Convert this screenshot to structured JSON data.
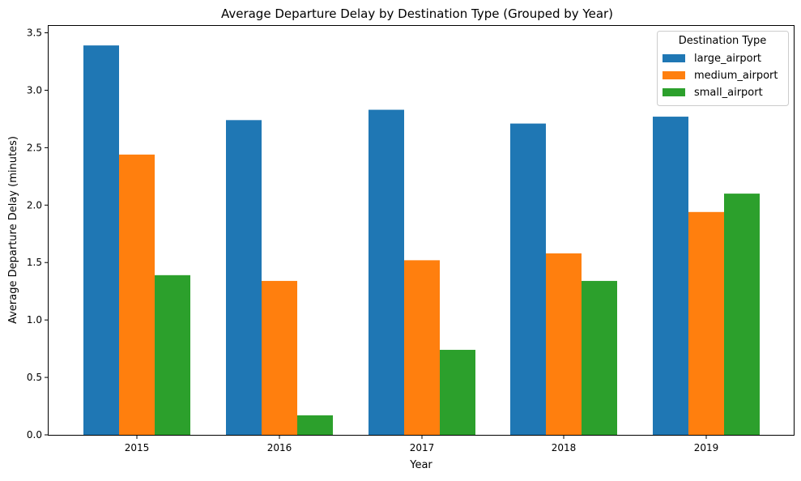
{
  "chart_data": {
    "type": "bar",
    "title": "Average Departure Delay by Destination Type (Grouped by Year)",
    "xlabel": "Year",
    "ylabel": "Average Departure Delay (minutes)",
    "categories": [
      "2015",
      "2016",
      "2017",
      "2018",
      "2019"
    ],
    "ylim": [
      0,
      3.56
    ],
    "yticks": [
      "0.0",
      "0.5",
      "1.0",
      "1.5",
      "2.0",
      "2.5",
      "3.0",
      "3.5"
    ],
    "grid": false,
    "legend": {
      "title": "Destination Type",
      "placement": "top-right"
    },
    "series": [
      {
        "name": "large_airport",
        "color": "#1f77b4",
        "values": [
          3.39,
          2.74,
          2.83,
          2.71,
          2.77
        ]
      },
      {
        "name": "medium_airport",
        "color": "#ff7f0e",
        "values": [
          2.44,
          1.34,
          1.52,
          1.58,
          1.94
        ]
      },
      {
        "name": "small_airport",
        "color": "#2ca02c",
        "values": [
          1.39,
          0.17,
          0.74,
          1.34,
          2.1
        ]
      }
    ]
  }
}
